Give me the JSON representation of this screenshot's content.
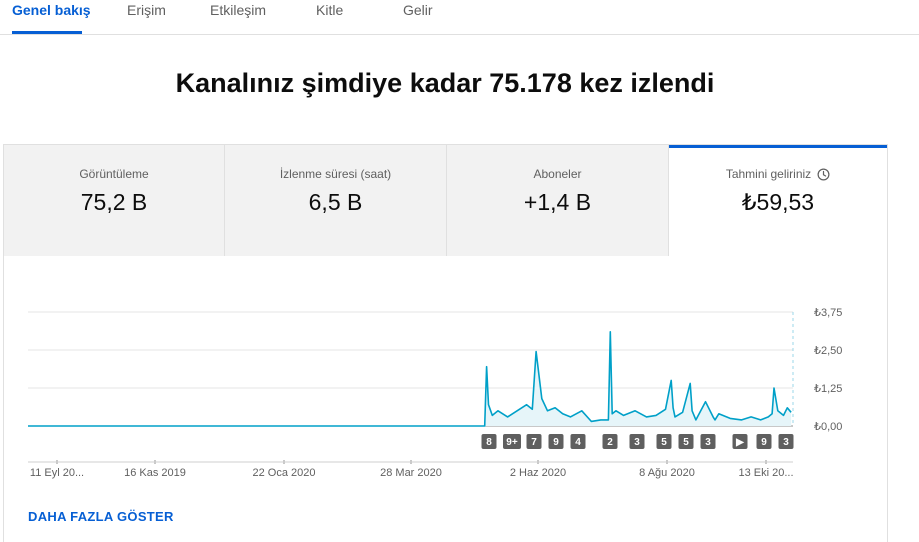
{
  "tabs": [
    {
      "label": "Genel bakış",
      "active": true
    },
    {
      "label": "Erişim"
    },
    {
      "label": "Etkileşim"
    },
    {
      "label": "Kitle"
    },
    {
      "label": "Gelir"
    }
  ],
  "headline": "Kanalınız şimdiye kadar 75.178 kez izlendi",
  "metrics": [
    {
      "label": "Görüntüleme",
      "value": "75,2 B"
    },
    {
      "label": "İzlenme süresi (saat)",
      "value": "6,5 B"
    },
    {
      "label": "Aboneler",
      "value": "+1,4 B"
    },
    {
      "label": "Tahmini geliriniz",
      "value": "₺59,53",
      "icon": "clock-icon",
      "active": true
    }
  ],
  "chart_data": {
    "type": "line",
    "metric": "Tahmini geliriniz",
    "y_ticks": [
      "₺3,75",
      "₺2,50",
      "₺1,25",
      "₺0,00"
    ],
    "ylim": [
      0,
      3.75
    ],
    "x_ticks": [
      "11 Eyl 20...",
      "16 Kas 2019",
      "22 Oca 2020",
      "28 Mar 2020",
      "2 Haz 2020",
      "8 Ağu 2020",
      "13 Eki 20..."
    ],
    "series": [
      {
        "color": "#00a0c8",
        "x": [
          "2019-09-11",
          "2020-05-08",
          "2020-05-09",
          "2020-05-10",
          "2020-05-12",
          "2020-05-15",
          "2020-05-20",
          "2020-05-25",
          "2020-05-30",
          "2020-06-02",
          "2020-06-04",
          "2020-06-07",
          "2020-06-10",
          "2020-06-14",
          "2020-06-18",
          "2020-06-22",
          "2020-06-28",
          "2020-07-03",
          "2020-07-08",
          "2020-07-12",
          "2020-07-13",
          "2020-07-14",
          "2020-07-16",
          "2020-07-20",
          "2020-07-26",
          "2020-08-01",
          "2020-08-06",
          "2020-08-11",
          "2020-08-14",
          "2020-08-15",
          "2020-08-16",
          "2020-08-20",
          "2020-08-24",
          "2020-08-25",
          "2020-08-27",
          "2020-09-01",
          "2020-09-05",
          "2020-09-06",
          "2020-09-08",
          "2020-09-14",
          "2020-09-20",
          "2020-09-25",
          "2020-09-30",
          "2020-10-04",
          "2020-10-06",
          "2020-10-07",
          "2020-10-09",
          "2020-10-12",
          "2020-10-14",
          "2020-10-16"
        ],
        "values": [
          0,
          0,
          1.95,
          0.7,
          0.35,
          0.5,
          0.3,
          0.5,
          0.7,
          0.55,
          2.45,
          0.9,
          0.5,
          0.6,
          0.4,
          0.3,
          0.5,
          0.15,
          0.2,
          0.2,
          3.1,
          0.4,
          0.5,
          0.35,
          0.5,
          0.3,
          0.35,
          0.55,
          1.5,
          0.6,
          0.3,
          0.45,
          1.4,
          0.5,
          0.2,
          0.8,
          0.3,
          0.2,
          0.4,
          0.25,
          0.2,
          0.3,
          0.2,
          0.3,
          0.4,
          1.25,
          0.5,
          0.35,
          0.6,
          0.45
        ]
      }
    ],
    "annotations": [
      "8",
      "9+",
      "7",
      "9",
      "4",
      "2",
      "3",
      "5",
      "5",
      "3",
      "▶",
      "9",
      "3"
    ],
    "grid": true
  },
  "show_more": "DAHA FAZLA GÖSTER"
}
